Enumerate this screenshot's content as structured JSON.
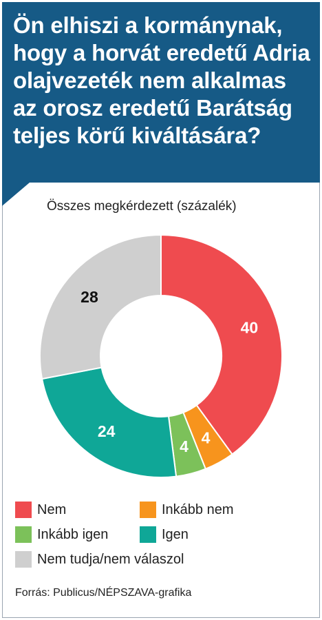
{
  "title": "Ön elhiszi a kormánynak, hogy a horvát eredetű Adria olajvezeték nem alkalmas az orosz eredetű Barátság teljes körű kiváltására?",
  "subtitle": "Összes megkérdezett (százalék)",
  "source": "Forrás: Publicus/NÉPSZAVA-grafika",
  "colors": {
    "header": "#165a86"
  },
  "chart_data": {
    "type": "pie",
    "variant": "donut",
    "title": "Ön elhiszi a kormánynak, hogy a horvát eredetű Adria olajvezeték nem alkalmas az orosz eredetű Barátság teljes körű kiváltására?",
    "subtitle": "Összes megkérdezett (százalék)",
    "categories": [
      "Nem",
      "Inkább nem",
      "Inkább igen",
      "Igen",
      "Nem tudja/nem válaszol"
    ],
    "values": [
      40,
      4,
      4,
      24,
      28
    ],
    "colors": [
      "#ef4b4f",
      "#f7941d",
      "#7cc15a",
      "#0fa797",
      "#cfcfcf"
    ],
    "label_colors": [
      "#ffffff",
      "#ffffff",
      "#ffffff",
      "#ffffff",
      "#111111"
    ],
    "legend_position": "bottom"
  },
  "legend": [
    {
      "label": "Nem",
      "color": "#ef4b4f"
    },
    {
      "label": "Inkább nem",
      "color": "#f7941d"
    },
    {
      "label": "Inkább igen",
      "color": "#7cc15a"
    },
    {
      "label": "Igen",
      "color": "#0fa797"
    },
    {
      "label": "Nem tudja/nem válaszol",
      "color": "#cfcfcf"
    }
  ]
}
